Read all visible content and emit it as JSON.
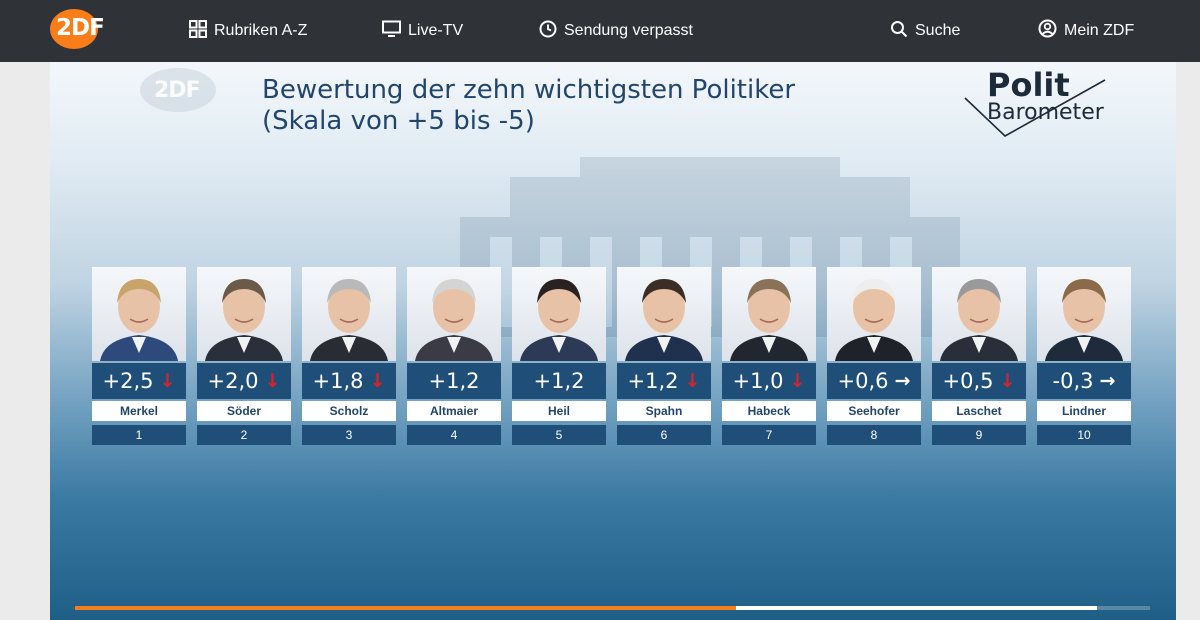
{
  "nav": {
    "logo": "2DF",
    "rubriken": "Rubriken A-Z",
    "live_tv": "Live-TV",
    "sendung": "Sendung verpasst",
    "suche": "Suche",
    "mein_zdf": "Mein ZDF"
  },
  "icons": {
    "rubriken": "grid-icon",
    "live_tv": "tv-icon",
    "sendung": "clock-icon",
    "suche": "search-icon",
    "mein_zdf": "user-icon"
  },
  "video": {
    "watermark": "2DF",
    "title_line1": "Bewertung der zehn wichtigsten Politiker",
    "title_line2": "(Skala von +5 bis -5)",
    "brand_line1": "Polit",
    "brand_line2": "Barometer"
  },
  "colors": {
    "accent": "#fa7d19",
    "card_blue": "#1f4f78",
    "down_arrow": "#d8232a"
  },
  "politicians": [
    {
      "name": "Merkel",
      "score": "+2,5",
      "trend": "down",
      "rank": "1"
    },
    {
      "name": "Söder",
      "score": "+2,0",
      "trend": "down",
      "rank": "2"
    },
    {
      "name": "Scholz",
      "score": "+1,8",
      "trend": "down",
      "rank": "3"
    },
    {
      "name": "Altmaier",
      "score": "+1,2",
      "trend": "none",
      "rank": "4"
    },
    {
      "name": "Heil",
      "score": "+1,2",
      "trend": "none",
      "rank": "5"
    },
    {
      "name": "Spahn",
      "score": "+1,2",
      "trend": "down",
      "rank": "6"
    },
    {
      "name": "Habeck",
      "score": "+1,0",
      "trend": "down",
      "rank": "7"
    },
    {
      "name": "Seehofer",
      "score": "+0,6",
      "trend": "right",
      "rank": "8"
    },
    {
      "name": "Laschet",
      "score": "+0,5",
      "trend": "down",
      "rank": "9"
    },
    {
      "name": "Lindner",
      "score": "-0,3",
      "trend": "right",
      "rank": "10"
    }
  ],
  "playback": {
    "progress_fraction": 0.615,
    "buffered_fraction": 0.951
  }
}
